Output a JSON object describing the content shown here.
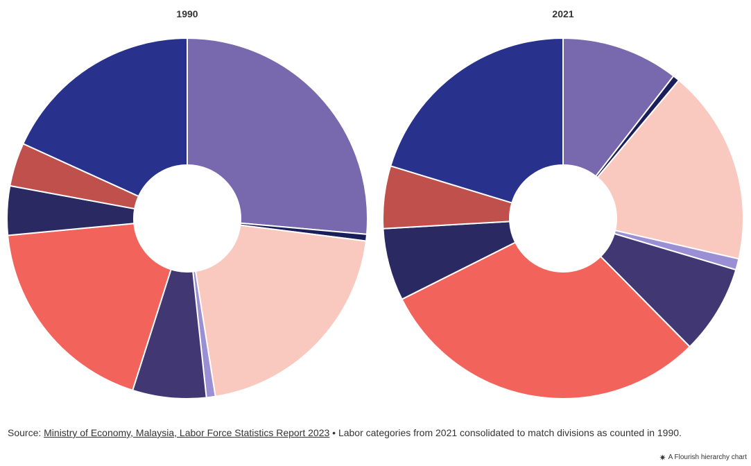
{
  "chart_data": [
    {
      "type": "pie",
      "title": "1990",
      "slices": [
        {
          "value": 26.4,
          "color": "#7868ae"
        },
        {
          "value": 0.6,
          "color": "#1a1f5a"
        },
        {
          "value": 20.5,
          "color": "#f9c8bf"
        },
        {
          "value": 0.8,
          "color": "#9a8fd4"
        },
        {
          "value": 6.6,
          "color": "#413873"
        },
        {
          "value": 18.6,
          "color": "#f2635c"
        },
        {
          "value": 4.4,
          "color": "#2b2962"
        },
        {
          "value": 3.9,
          "color": "#c0504b"
        },
        {
          "value": 18.2,
          "color": "#28318c"
        }
      ]
    },
    {
      "type": "pie",
      "title": "2021",
      "slices": [
        {
          "value": 10.5,
          "color": "#7868ae"
        },
        {
          "value": 0.6,
          "color": "#1a1f5a"
        },
        {
          "value": 17.5,
          "color": "#f9c8bf"
        },
        {
          "value": 1.0,
          "color": "#9a8fd4"
        },
        {
          "value": 8.0,
          "color": "#413873"
        },
        {
          "value": 30.0,
          "color": "#f2635c"
        },
        {
          "value": 6.5,
          "color": "#2b2962"
        },
        {
          "value": 5.6,
          "color": "#c0504b"
        },
        {
          "value": 20.3,
          "color": "#28318c"
        }
      ]
    }
  ],
  "footer": {
    "source_prefix": "Source: ",
    "source_link": "Ministry of Economy, Malaysia, Labor Force Statistics Report 2023",
    "note": " • Labor categories from 2021 consolidated to match divisions as counted in 1990."
  },
  "credit": {
    "icon": "flourish-asterisk-icon",
    "text": "A Flourish hierarchy chart"
  }
}
